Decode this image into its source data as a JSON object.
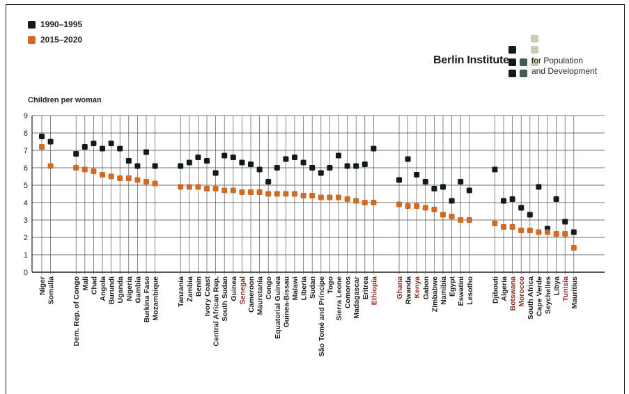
{
  "chart_data": {
    "type": "scatter",
    "ylabel": "Children per woman",
    "ylim": [
      0,
      9
    ],
    "yticks": [
      "0",
      "1",
      "2",
      "3",
      "4",
      "5",
      "6",
      "7",
      "8",
      "9"
    ],
    "grid": true,
    "legend_placement": "top-left",
    "series": [
      {
        "name": "1990–1995",
        "color": "#111a1c"
      },
      {
        "name": "2015–2020",
        "color": "#d06a24"
      }
    ],
    "groups": [
      [
        {
          "country": "Niger",
          "v1990": 7.8,
          "v2015": 7.2,
          "highlight": false
        },
        {
          "country": "Somalia",
          "v1990": 7.5,
          "v2015": 6.1,
          "highlight": false
        }
      ],
      [
        {
          "country": "Dem. Rep. of Congo",
          "v1990": 6.8,
          "v2015": 6.0,
          "highlight": false
        },
        {
          "country": "Mali",
          "v1990": 7.2,
          "v2015": 5.9,
          "highlight": false
        },
        {
          "country": "Chad",
          "v1990": 7.4,
          "v2015": 5.8,
          "highlight": false
        },
        {
          "country": "Angola",
          "v1990": 7.1,
          "v2015": 5.6,
          "highlight": false
        },
        {
          "country": "Burundi",
          "v1990": 7.4,
          "v2015": 5.5,
          "highlight": false
        },
        {
          "country": "Uganda",
          "v1990": 7.1,
          "v2015": 5.4,
          "highlight": false
        },
        {
          "country": "Nigeria",
          "v1990": 6.4,
          "v2015": 5.4,
          "highlight": false
        },
        {
          "country": "Gambia",
          "v1990": 6.1,
          "v2015": 5.3,
          "highlight": false
        },
        {
          "country": "Burkina Faso",
          "v1990": 6.9,
          "v2015": 5.2,
          "highlight": false
        },
        {
          "country": "Mozambique",
          "v1990": 6.1,
          "v2015": 5.1,
          "highlight": false
        }
      ],
      [
        {
          "country": "Tanzania",
          "v1990": 6.1,
          "v2015": 4.9,
          "highlight": false
        },
        {
          "country": "Zambia",
          "v1990": 6.3,
          "v2015": 4.9,
          "highlight": false
        },
        {
          "country": "Benin",
          "v1990": 6.6,
          "v2015": 4.9,
          "highlight": false
        },
        {
          "country": "Ivory Coast",
          "v1990": 6.4,
          "v2015": 4.8,
          "highlight": false
        },
        {
          "country": "Central African Rep.",
          "v1990": 5.7,
          "v2015": 4.8,
          "highlight": false
        },
        {
          "country": "South Sudan",
          "v1990": 6.7,
          "v2015": 4.7,
          "highlight": false
        },
        {
          "country": "Guinea",
          "v1990": 6.6,
          "v2015": 4.7,
          "highlight": false
        },
        {
          "country": "Senegal",
          "v1990": 6.3,
          "v2015": 4.6,
          "highlight": true
        },
        {
          "country": "Cameroon",
          "v1990": 6.2,
          "v2015": 4.6,
          "highlight": false
        },
        {
          "country": "Mauretania",
          "v1990": 5.9,
          "v2015": 4.6,
          "highlight": false
        },
        {
          "country": "Congo",
          "v1990": 5.2,
          "v2015": 4.5,
          "highlight": false
        },
        {
          "country": "Equatorial Guinea",
          "v1990": 6.0,
          "v2015": 4.5,
          "highlight": false
        },
        {
          "country": "Guinea-Bissau",
          "v1990": 6.5,
          "v2015": 4.5,
          "highlight": false
        },
        {
          "country": "Malawi",
          "v1990": 6.6,
          "v2015": 4.5,
          "highlight": false
        },
        {
          "country": "Liberia",
          "v1990": 6.3,
          "v2015": 4.4,
          "highlight": false
        },
        {
          "country": "Sudan",
          "v1990": 6.0,
          "v2015": 4.4,
          "highlight": false
        },
        {
          "country": "São Tomé and Príncipe",
          "v1990": 5.7,
          "v2015": 4.3,
          "highlight": false
        },
        {
          "country": "Togo",
          "v1990": 6.0,
          "v2015": 4.3,
          "highlight": false
        },
        {
          "country": "Sierra Leone",
          "v1990": 6.7,
          "v2015": 4.3,
          "highlight": false
        },
        {
          "country": "Comoros",
          "v1990": 6.1,
          "v2015": 4.2,
          "highlight": false
        },
        {
          "country": "Madagascar",
          "v1990": 6.1,
          "v2015": 4.1,
          "highlight": false
        },
        {
          "country": "Eritrea",
          "v1990": 6.2,
          "v2015": 4.0,
          "highlight": false
        },
        {
          "country": "Ethiopia",
          "v1990": 7.1,
          "v2015": 4.0,
          "highlight": true
        }
      ],
      [
        {
          "country": "Ghana",
          "v1990": 5.3,
          "v2015": 3.9,
          "highlight": true
        },
        {
          "country": "Rwanda",
          "v1990": 6.5,
          "v2015": 3.8,
          "highlight": false
        },
        {
          "country": "Kenya",
          "v1990": 5.6,
          "v2015": 3.8,
          "highlight": true
        },
        {
          "country": "Gabon",
          "v1990": 5.2,
          "v2015": 3.7,
          "highlight": false
        },
        {
          "country": "Zimbabwe",
          "v1990": 4.8,
          "v2015": 3.6,
          "highlight": false
        },
        {
          "country": "Namibia",
          "v1990": 4.9,
          "v2015": 3.3,
          "highlight": false
        },
        {
          "country": "Egypt",
          "v1990": 4.1,
          "v2015": 3.2,
          "highlight": false
        },
        {
          "country": "Eswatini",
          "v1990": 5.2,
          "v2015": 3.0,
          "highlight": false
        },
        {
          "country": "Lesotho",
          "v1990": 4.7,
          "v2015": 3.0,
          "highlight": false
        }
      ],
      [
        {
          "country": "Djibouti",
          "v1990": 5.9,
          "v2015": 2.8,
          "highlight": false
        },
        {
          "country": "Algeria",
          "v1990": 4.1,
          "v2015": 2.6,
          "highlight": false
        },
        {
          "country": "Botswana",
          "v1990": 4.2,
          "v2015": 2.6,
          "highlight": true
        },
        {
          "country": "Morocco",
          "v1990": 3.7,
          "v2015": 2.4,
          "highlight": true
        },
        {
          "country": "South Africa",
          "v1990": 3.3,
          "v2015": 2.4,
          "highlight": false
        },
        {
          "country": "Cape Verde",
          "v1990": 4.9,
          "v2015": 2.3,
          "highlight": false
        },
        {
          "country": "Seychelles",
          "v1990": 2.5,
          "v2015": 2.3,
          "highlight": false
        },
        {
          "country": "Libya",
          "v1990": 4.2,
          "v2015": 2.2,
          "highlight": false
        },
        {
          "country": "Tunisia",
          "v1990": 2.9,
          "v2015": 2.2,
          "highlight": true
        },
        {
          "country": "Mauritius",
          "v1990": 2.3,
          "v2015": 1.4,
          "highlight": false
        }
      ]
    ]
  },
  "logo": {
    "name": "Berlin Institute",
    "subtitle_line1": "for Population",
    "subtitle_line2": "and Development",
    "colors": [
      "#111a1c",
      "#3f5c55",
      "#c7cdb0"
    ]
  },
  "highlight_label_color": "#8a2a22"
}
